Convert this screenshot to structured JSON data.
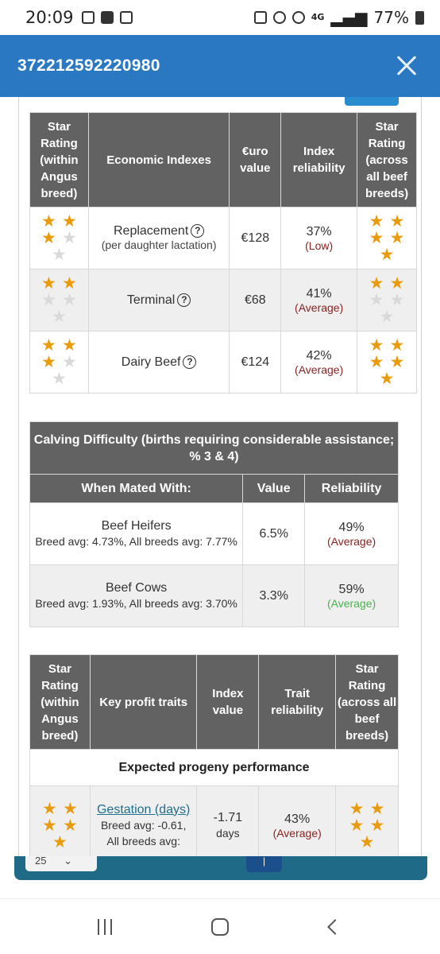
{
  "status_bar": {
    "time": "20:09",
    "network": "4G",
    "battery": "77%"
  },
  "header": {
    "title": "372212592220980"
  },
  "economic_table": {
    "headers": {
      "star_within": "Star Rating (within Angus breed)",
      "indexes": "Economic Indexes",
      "value": "€uro value",
      "reliability": "Index reliability",
      "star_across": "Star Rating (across all beef breeds)"
    },
    "rows": [
      {
        "name": "Replacement",
        "sub": "(per daughter lactation)",
        "value": "€128",
        "rel": "37%",
        "rel_label": "(Low)",
        "stars_within": 3,
        "stars_across": 5
      },
      {
        "name": "Terminal",
        "sub": "",
        "value": "€68",
        "rel": "41%",
        "rel_label": "(Average)",
        "stars_within": 2,
        "stars_across": 2
      },
      {
        "name": "Dairy Beef",
        "sub": "",
        "value": "€124",
        "rel": "42%",
        "rel_label": "(Average)",
        "stars_within": 3,
        "stars_across": 5
      }
    ]
  },
  "calving_table": {
    "title": "Calving Difficulty (births requiring considerable assistance; % 3 & 4)",
    "headers": {
      "mated": "When Mated With:",
      "value": "Value",
      "reliability": "Reliability"
    },
    "rows": [
      {
        "name": "Beef Heifers",
        "avg": "Breed avg: 4.73%, All breeds avg: 7.77%",
        "value": "6.5%",
        "rel": "49%",
        "rel_label": "(Average)"
      },
      {
        "name": "Beef Cows",
        "avg": "Breed avg: 1.93%, All breeds avg: 3.70%",
        "value": "3.3%",
        "rel": "59%",
        "rel_label": "(Average)"
      }
    ]
  },
  "traits_table": {
    "headers": {
      "star_within": "Star Rating (within Angus breed)",
      "traits": "Key profit traits",
      "value": "Index value",
      "reliability": "Trait reliability",
      "star_across": "Star Rating (across all beef breeds)"
    },
    "band": "Expected progeny performance",
    "gestation": {
      "link": "Gestation (days)",
      "line1": "Breed avg: -0.61,",
      "line2": "All breeds avg:",
      "value": "-1.71",
      "unit": "days",
      "rel": "43%",
      "rel_label": "(Average)"
    }
  },
  "pager": {
    "select_value": "25"
  },
  "colors": {
    "header_blue": "#2b78c2",
    "table_header": "#626262",
    "star": "#e99b0e",
    "rel_low_avg": "#8a2222",
    "rel_good": "#4caf50"
  }
}
